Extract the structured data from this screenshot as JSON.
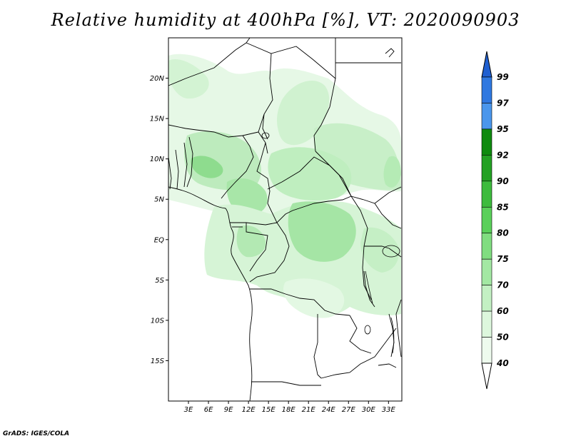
{
  "title": "Relative humidity at 400hPa [%], VT: 2020090903",
  "footer": "GrADS: IGES/COLA",
  "map": {
    "lon_range": [
      0,
      35
    ],
    "lat_range": [
      -20,
      25
    ],
    "lat_ticks": [
      {
        "value": 20,
        "label": "20N"
      },
      {
        "value": 15,
        "label": "15N"
      },
      {
        "value": 10,
        "label": "10N"
      },
      {
        "value": 5,
        "label": "5N"
      },
      {
        "value": 0,
        "label": "EQ"
      },
      {
        "value": -5,
        "label": "5S"
      },
      {
        "value": -10,
        "label": "10S"
      },
      {
        "value": -15,
        "label": "15S"
      }
    ],
    "lon_ticks": [
      {
        "value": 3,
        "label": "3E"
      },
      {
        "value": 6,
        "label": "6E"
      },
      {
        "value": 9,
        "label": "9E"
      },
      {
        "value": 12,
        "label": "12E"
      },
      {
        "value": 15,
        "label": "15E"
      },
      {
        "value": 18,
        "label": "18E"
      },
      {
        "value": 21,
        "label": "21E"
      },
      {
        "value": 24,
        "label": "24E"
      },
      {
        "value": 27,
        "label": "27E"
      },
      {
        "value": 30,
        "label": "30E"
      },
      {
        "value": 33,
        "label": "33E"
      }
    ]
  },
  "colorbar": {
    "levels": [
      {
        "label": "99",
        "color": "#1f5fd0"
      },
      {
        "label": "97",
        "color": "#2f78e0"
      },
      {
        "label": "95",
        "color": "#4a96ec"
      },
      {
        "label": "92",
        "color": "#0e8a0e"
      },
      {
        "label": "90",
        "color": "#23a123"
      },
      {
        "label": "85",
        "color": "#3dbb3d"
      },
      {
        "label": "80",
        "color": "#5ad05a"
      },
      {
        "label": "75",
        "color": "#80dd80"
      },
      {
        "label": "70",
        "color": "#a3e8a3"
      },
      {
        "label": "60",
        "color": "#c3f0c3"
      },
      {
        "label": "50",
        "color": "#ddf7dd"
      },
      {
        "label": "40",
        "color": "#eefbee"
      }
    ],
    "top_color": "#1f5fd0",
    "bottom_color": "#ffffff"
  },
  "fill_colors": {
    "light": "#e8f8e8",
    "mid": "#c8f0c8",
    "medium": "#a8e6a8",
    "dark": "#7fd67f",
    "darkest": "#55c455"
  }
}
